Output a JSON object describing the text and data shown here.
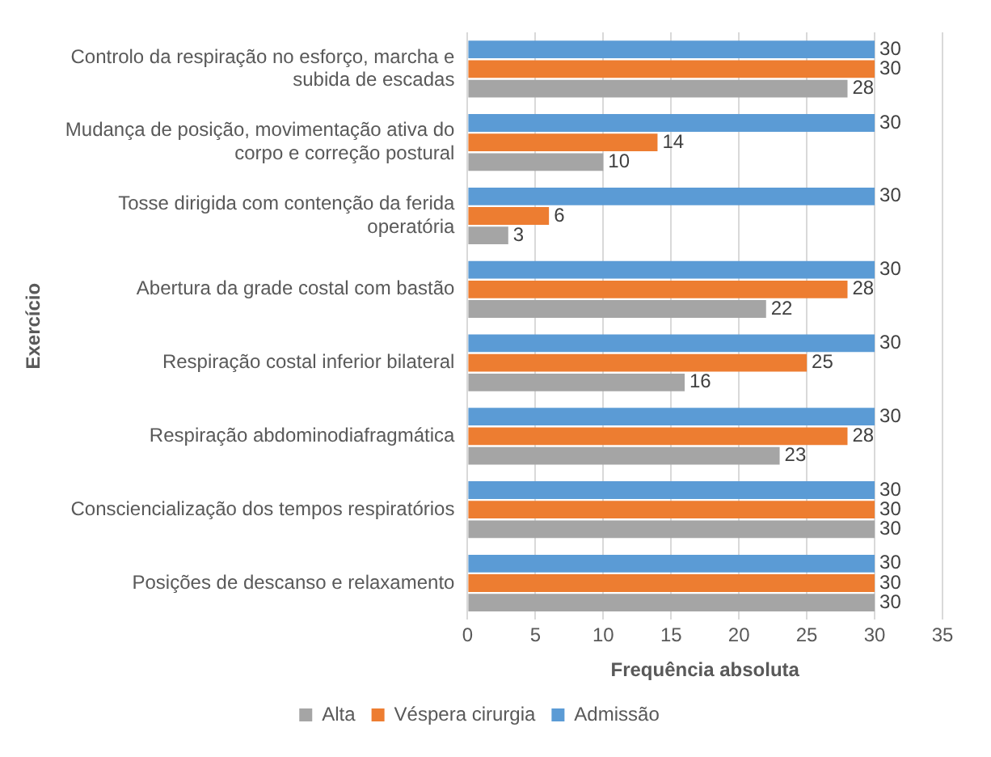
{
  "chart_data": {
    "type": "bar",
    "orientation": "horizontal",
    "xlabel": "Frequência absoluta",
    "ylabel": "Exercício",
    "categories": [
      "Controlo da respiração no esforço, marcha e subida de escadas",
      "Mudança de posição, movimentação ativa do corpo e correção postural",
      "Tosse dirigida com contenção da ferida operatória",
      "Abertura da grade costal com bastão",
      "Respiração costal inferior bilateral",
      "Respiração abdominodiafragmática",
      "Consciencialização dos tempos respiratórios",
      "Posições de descanso e relaxamento"
    ],
    "series": [
      {
        "name": "Alta",
        "color": "#a5a5a5",
        "values": [
          28,
          10,
          3,
          22,
          16,
          23,
          30,
          30
        ]
      },
      {
        "name": "Véspera cirurgia",
        "color": "#ed7d31",
        "values": [
          30,
          14,
          6,
          28,
          25,
          28,
          30,
          30
        ]
      },
      {
        "name": "Admissão",
        "color": "#5b9bd5",
        "values": [
          30,
          30,
          30,
          30,
          30,
          30,
          30,
          30
        ]
      }
    ],
    "xlim": [
      0,
      35
    ],
    "xticks": [
      0,
      5,
      10,
      15,
      20,
      25,
      30,
      35
    ],
    "grid": "x",
    "legend": "bottom",
    "data_labels": true
  }
}
